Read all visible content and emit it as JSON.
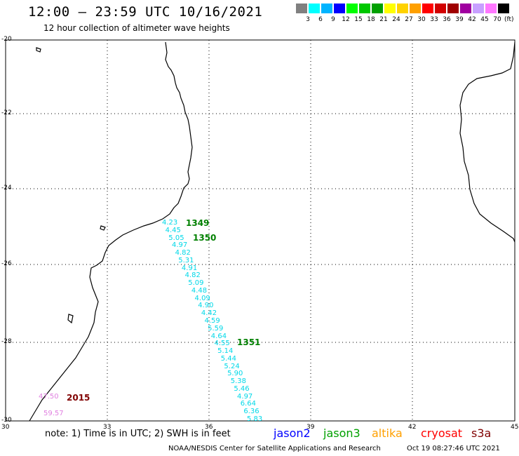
{
  "title": "12:00 — 23:59 UTC 10/16/2021",
  "subtitle": "12 hour collection of altimeter wave heights",
  "scale": {
    "colors": [
      "#808080",
      "#00ffff",
      "#00b4ff",
      "#0000ff",
      "#00ff00",
      "#00c800",
      "#00a000",
      "#ffff00",
      "#ffd200",
      "#ffa000",
      "#ff0000",
      "#d20000",
      "#a00000",
      "#a000a0",
      "#c8a0ff",
      "#ff78ff",
      "#000000"
    ],
    "labels": [
      "3",
      "6",
      "9",
      "12",
      "15",
      "18",
      "21",
      "24",
      "27",
      "30",
      "33",
      "36",
      "39",
      "42",
      "45",
      "70"
    ],
    "unit": "(ft)"
  },
  "axes": {
    "lat_ticks": [
      "-20",
      "-22",
      "-24",
      "-26",
      "-28",
      "-30"
    ],
    "lon_ticks": [
      "30",
      "33",
      "36",
      "39",
      "42",
      "45"
    ]
  },
  "passes": [
    {
      "label": "1349",
      "color": "#008000"
    },
    {
      "label": "1350",
      "color": "#008000"
    },
    {
      "label": "1351",
      "color": "#008000"
    },
    {
      "label": "2015",
      "color": "#800000"
    }
  ],
  "swh_track": [
    "4.23",
    "4.45",
    "5.05",
    "4.97",
    "4.82",
    "5.31",
    "4.91",
    "4.82",
    "5.09",
    "4.48",
    "4.09",
    "4.90",
    "4.42",
    "4.59",
    "5.59",
    "4.64",
    "4.55",
    "5.14",
    "5.44",
    "5.24",
    "5.90",
    "5.38",
    "5.46",
    "4.97",
    "6.64",
    "6.36",
    "5.83"
  ],
  "swh_pink": [
    "47.50",
    "59.57"
  ],
  "note": "note:  1) Time is in UTC;  2) SWH is in feet",
  "legend": [
    {
      "label": "jason2",
      "color": "#0000ff"
    },
    {
      "label": "jason3",
      "color": "#00a000"
    },
    {
      "label": "altika",
      "color": "#ffa000"
    },
    {
      "label": "cryosat",
      "color": "#ff0000"
    },
    {
      "label": "s3a",
      "color": "#800000"
    }
  ],
  "credit": "NOAA/NESDIS Center for Satellite Applications and Research",
  "generated": "Oct 19 08:27:46 UTC 2021"
}
